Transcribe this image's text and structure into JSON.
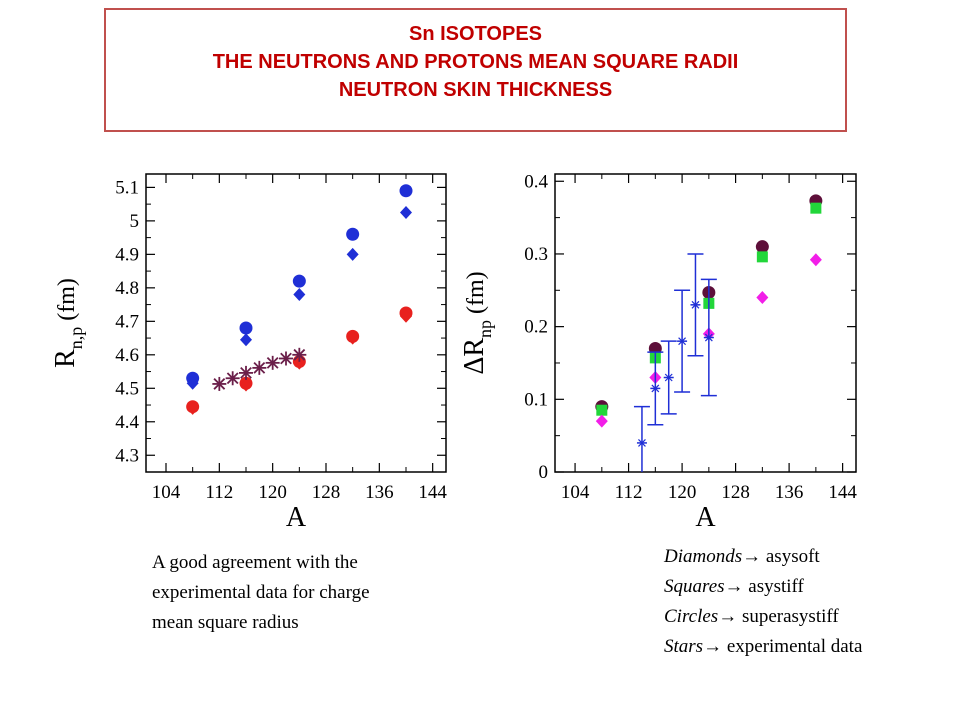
{
  "title_lines": [
    "Sn ISOTOPES",
    "THE  NEUTRONS AND PROTONS MEAN SQUARE RADII",
    "NEUTRON  SKIN THICKNESS"
  ],
  "colors": {
    "title_text": "#c00000",
    "title_border": "#c0504d",
    "blue": "#1f2fd6",
    "red": "#e8211e",
    "star": "#6b1f4a",
    "circle": "#5e0f3a",
    "square": "#22d63a",
    "diamond": "#f21ee8",
    "errorbar": "#1f2fd6"
  },
  "chart_data": [
    {
      "type": "scatter",
      "xlabel": "A",
      "ylabel_main": "R",
      "ylabel_sub": "n,p",
      "ylabel_unit": "(fm)",
      "xlim": [
        101,
        146
      ],
      "ylim": [
        4.25,
        5.14
      ],
      "xticks": [
        104,
        112,
        120,
        128,
        136,
        144
      ],
      "yticks": [
        4.3,
        4.4,
        4.5,
        4.6,
        4.7,
        4.8,
        4.9,
        5.0,
        5.1
      ],
      "ytick_labels": [
        "4.3",
        "4.4",
        "4.5",
        "4.6",
        "4.7",
        "4.8",
        "4.9",
        "5",
        "5.1"
      ],
      "series": [
        {
          "marker": "circle",
          "color": "#1f2fd6",
          "x": [
            108,
            116,
            124,
            132,
            140
          ],
          "y": [
            4.53,
            4.68,
            4.82,
            4.96,
            5.09
          ]
        },
        {
          "marker": "diamond",
          "color": "#1f2fd6",
          "x": [
            108,
            116,
            124,
            132,
            140
          ],
          "y": [
            4.515,
            4.645,
            4.78,
            4.9,
            5.025
          ]
        },
        {
          "marker": "circle",
          "color": "#e8211e",
          "x": [
            108,
            116,
            124,
            132,
            140
          ],
          "y": [
            4.445,
            4.515,
            4.58,
            4.655,
            4.725
          ]
        },
        {
          "marker": "diamond",
          "color": "#e8211e",
          "x": [
            108,
            116,
            124,
            132,
            140
          ],
          "y": [
            4.44,
            4.51,
            4.575,
            4.65,
            4.715
          ]
        },
        {
          "marker": "star",
          "color": "#6b1f4a",
          "x": [
            112,
            114,
            116,
            118,
            120,
            122,
            124
          ],
          "y": [
            4.513,
            4.53,
            4.546,
            4.561,
            4.576,
            4.589,
            4.6
          ]
        }
      ]
    },
    {
      "type": "scatter",
      "xlabel": "A",
      "ylabel_main": "ΔR",
      "ylabel_sub": "np",
      "ylabel_unit": "(fm)",
      "xlim": [
        101,
        146
      ],
      "ylim": [
        0,
        0.41
      ],
      "xticks": [
        104,
        112,
        120,
        128,
        136,
        144
      ],
      "yticks": [
        0,
        0.1,
        0.2,
        0.3,
        0.4
      ],
      "ytick_labels": [
        "0",
        "0.1",
        "0.2",
        "0.3",
        "0.4"
      ],
      "series": [
        {
          "marker": "circle",
          "color": "#5e0f3a",
          "x": [
            108,
            116,
            124,
            132,
            140
          ],
          "y": [
            0.09,
            0.17,
            0.247,
            0.31,
            0.373
          ]
        },
        {
          "marker": "square",
          "color": "#22d63a",
          "x": [
            108,
            116,
            124,
            132,
            140
          ],
          "y": [
            0.085,
            0.157,
            0.232,
            0.296,
            0.363
          ]
        },
        {
          "marker": "diamond",
          "color": "#f21ee8",
          "x": [
            108,
            116,
            124,
            132,
            140
          ],
          "y": [
            0.07,
            0.13,
            0.19,
            0.24,
            0.292
          ]
        },
        {
          "marker": "errorstar",
          "color": "#1f2fd6",
          "points": [
            {
              "x": 114,
              "y": 0.04,
              "err": 0.05
            },
            {
              "x": 116,
              "y": 0.115,
              "err": 0.05
            },
            {
              "x": 118,
              "y": 0.13,
              "err": 0.05
            },
            {
              "x": 120,
              "y": 0.18,
              "err": 0.07
            },
            {
              "x": 122,
              "y": 0.23,
              "err": 0.07
            },
            {
              "x": 124,
              "y": 0.185,
              "err": 0.08
            }
          ]
        }
      ]
    }
  ],
  "note_lines": [
    "A good agreement with the",
    "experimental data for charge",
    "mean square radius"
  ],
  "legend": [
    {
      "name": "Diamonds",
      "arrow": "→",
      "desc": "asysoft"
    },
    {
      "name": "Squares",
      "arrow": "→",
      "desc": "asystiff"
    },
    {
      "name": "Circles",
      "arrow": "→",
      "desc": "superasystiff"
    },
    {
      "name": "Stars",
      "arrow": "→",
      "desc": "experimental data"
    }
  ]
}
